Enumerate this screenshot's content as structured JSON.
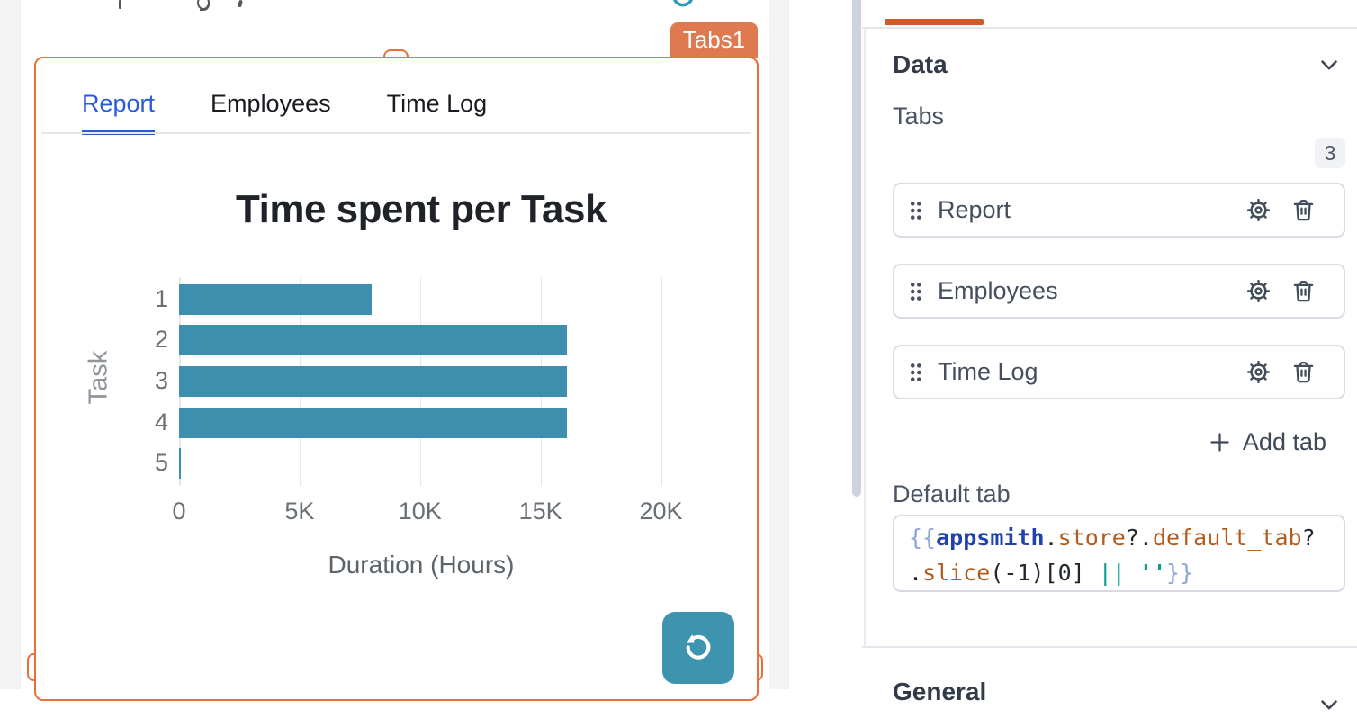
{
  "colors": {
    "selection_orange": "#E8713B",
    "widget_badge_orange": "#DF7950",
    "panel_accent_orange": "#D05A28",
    "active_tab_blue": "#2A5BD7",
    "bar_teal": "#3E8FAE",
    "refresh_button_teal": "#3E93AE"
  },
  "canvas": {
    "widget_name_badge": "Tabs1",
    "widget_tabs": [
      {
        "label": "Report",
        "active": true
      },
      {
        "label": "Employees",
        "active": false
      },
      {
        "label": "Time Log",
        "active": false
      }
    ]
  },
  "chart_data": {
    "type": "bar",
    "orientation": "horizontal",
    "title": "Time spent per Task",
    "categories": [
      "1",
      "2",
      "3",
      "4",
      "5"
    ],
    "values": [
      8000,
      16100,
      16100,
      16100,
      60
    ],
    "xlabel": "Duration (Hours)",
    "ylabel": "Task",
    "xlim": [
      0,
      21400
    ],
    "xticks": [
      {
        "v": 0,
        "label": "0"
      },
      {
        "v": 5000,
        "label": "5K"
      },
      {
        "v": 10000,
        "label": "10K"
      },
      {
        "v": 15000,
        "label": "15K"
      },
      {
        "v": 20000,
        "label": "20K"
      }
    ],
    "grid": true,
    "legend": false,
    "bar_color": "#3E8FAE"
  },
  "property_panel": {
    "data_section_title": "Data",
    "tabs_field_label": "Tabs",
    "tabs_count": "3",
    "tab_items": [
      {
        "label": "Report"
      },
      {
        "label": "Employees"
      },
      {
        "label": "Time Log"
      }
    ],
    "add_tab_label": "Add tab",
    "default_tab_label": "Default tab",
    "default_tab_expression": "{{appsmith.store?.default_tab?.slice(-1)[0] || ''}}",
    "code_lines": [
      [
        {
          "t": "{{",
          "c": "brace"
        },
        {
          "t": "appsmith",
          "c": "kw"
        },
        {
          "t": ".",
          "c": "plain"
        },
        {
          "t": "store",
          "c": "prop"
        },
        {
          "t": "?",
          "c": "plain"
        },
        {
          "t": ".",
          "c": "plain"
        },
        {
          "t": "default_tab",
          "c": "prop"
        },
        {
          "t": "?",
          "c": "plain"
        }
      ],
      [
        {
          "t": ".",
          "c": "plain"
        },
        {
          "t": "slice",
          "c": "prop"
        },
        {
          "t": "(-1)[0]",
          "c": "plain"
        },
        {
          "t": " ",
          "c": "plain"
        },
        {
          "t": "||",
          "c": "op"
        },
        {
          "t": " ",
          "c": "plain"
        },
        {
          "t": "''",
          "c": "str"
        },
        {
          "t": "}}",
          "c": "brace"
        }
      ]
    ],
    "general_section_title": "General"
  }
}
